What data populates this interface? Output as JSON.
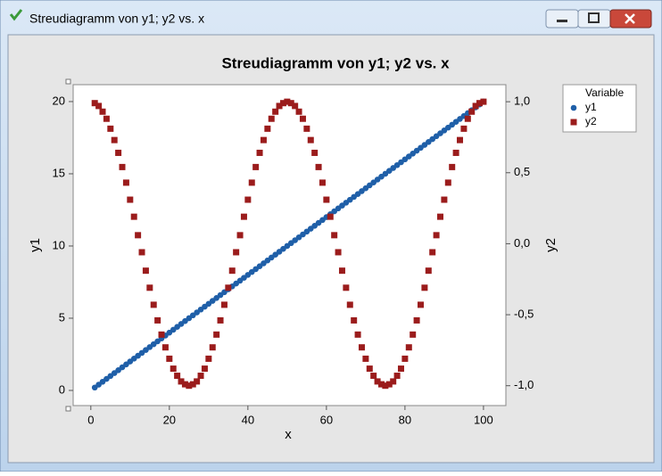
{
  "window": {
    "title": "Streudiagramm von y1; y2 vs. x"
  },
  "chart_data": {
    "type": "scatter",
    "title": "Streudiagramm von y1; y2 vs. x",
    "x_label": "x",
    "y_label": "y1",
    "y2_label": "y2",
    "legend_title": "Variable",
    "legend": "right",
    "x": [
      1,
      2,
      3,
      4,
      5,
      6,
      7,
      8,
      9,
      10,
      11,
      12,
      13,
      14,
      15,
      16,
      17,
      18,
      19,
      20,
      21,
      22,
      23,
      24,
      25,
      26,
      27,
      28,
      29,
      30,
      31,
      32,
      33,
      34,
      35,
      36,
      37,
      38,
      39,
      40,
      41,
      42,
      43,
      44,
      45,
      46,
      47,
      48,
      49,
      50,
      51,
      52,
      53,
      54,
      55,
      56,
      57,
      58,
      59,
      60,
      61,
      62,
      63,
      64,
      65,
      66,
      67,
      68,
      69,
      70,
      71,
      72,
      73,
      74,
      75,
      76,
      77,
      78,
      79,
      80,
      81,
      82,
      83,
      84,
      85,
      86,
      87,
      88,
      89,
      90,
      91,
      92,
      93,
      94,
      95,
      96,
      97,
      98,
      99,
      100
    ],
    "series": [
      {
        "name": "y1",
        "color": "#1f5fa8",
        "marker": "circle",
        "values": [
          0.2,
          0.4,
          0.6,
          0.8,
          1,
          1.2,
          1.4,
          1.6,
          1.8,
          2,
          2.2,
          2.4,
          2.6,
          2.8,
          3,
          3.2,
          3.4,
          3.6,
          3.8,
          4,
          4.2,
          4.4,
          4.6,
          4.8,
          5,
          5.2,
          5.4,
          5.6,
          5.8,
          6,
          6.2,
          6.4,
          6.6,
          6.8,
          7,
          7.2,
          7.4,
          7.6,
          7.8,
          8,
          8.2,
          8.4,
          8.6,
          8.8,
          9,
          9.2,
          9.4,
          9.6,
          9.8,
          10,
          10.2,
          10.4,
          10.6,
          10.8,
          11,
          11.2,
          11.4,
          11.6,
          11.8,
          12,
          12.2,
          12.4,
          12.6,
          12.8,
          13,
          13.2,
          13.4,
          13.6,
          13.8,
          14,
          14.2,
          14.4,
          14.6,
          14.8,
          15,
          15.2,
          15.4,
          15.6,
          15.8,
          16,
          16.2,
          16.4,
          16.6,
          16.8,
          17,
          17.2,
          17.4,
          17.6,
          17.8,
          18,
          18.2,
          18.4,
          18.6,
          18.8,
          19,
          19.2,
          19.4,
          19.6,
          19.8,
          20
        ]
      },
      {
        "name": "y2",
        "color": "#9b1c1c",
        "marker": "square",
        "axis": "y2",
        "values": [
          0.99,
          0.97,
          0.93,
          0.88,
          0.81,
          0.73,
          0.64,
          0.54,
          0.43,
          0.31,
          0.19,
          0.06,
          -0.06,
          -0.19,
          -0.31,
          -0.43,
          -0.54,
          -0.64,
          -0.73,
          -0.81,
          -0.88,
          -0.93,
          -0.97,
          -0.99,
          -1,
          -0.99,
          -0.97,
          -0.93,
          -0.88,
          -0.81,
          -0.73,
          -0.64,
          -0.54,
          -0.43,
          -0.31,
          -0.19,
          -0.06,
          0.06,
          0.19,
          0.31,
          0.43,
          0.54,
          0.64,
          0.73,
          0.81,
          0.88,
          0.93,
          0.97,
          0.99,
          1,
          0.99,
          0.97,
          0.93,
          0.88,
          0.81,
          0.73,
          0.64,
          0.54,
          0.43,
          0.31,
          0.19,
          0.06,
          -0.06,
          -0.19,
          -0.31,
          -0.43,
          -0.54,
          -0.64,
          -0.73,
          -0.81,
          -0.88,
          -0.93,
          -0.97,
          -0.99,
          -1,
          -0.99,
          -0.97,
          -0.93,
          -0.88,
          -0.81,
          -0.73,
          -0.64,
          -0.54,
          -0.43,
          -0.31,
          -0.19,
          -0.06,
          0.06,
          0.19,
          0.31,
          0.43,
          0.54,
          0.64,
          0.73,
          0.81,
          0.88,
          0.93,
          0.97,
          0.99,
          1
        ]
      }
    ],
    "xlim": [
      -4.5,
      105.7
    ],
    "xticks": [
      0,
      20,
      40,
      60,
      80,
      100
    ],
    "ylim": [
      -1.05,
      21.17
    ],
    "yticks": [
      0,
      5,
      10,
      15,
      20
    ],
    "y2lim": [
      -1.14,
      1.12
    ],
    "y2ticks": [
      {
        "value": -1,
        "label": "-1,0"
      },
      {
        "value": -0.5,
        "label": "-0,5"
      },
      {
        "value": 0,
        "label": "0,0"
      },
      {
        "value": 0.5,
        "label": "0,5"
      },
      {
        "value": 1,
        "label": "1,0"
      }
    ]
  }
}
